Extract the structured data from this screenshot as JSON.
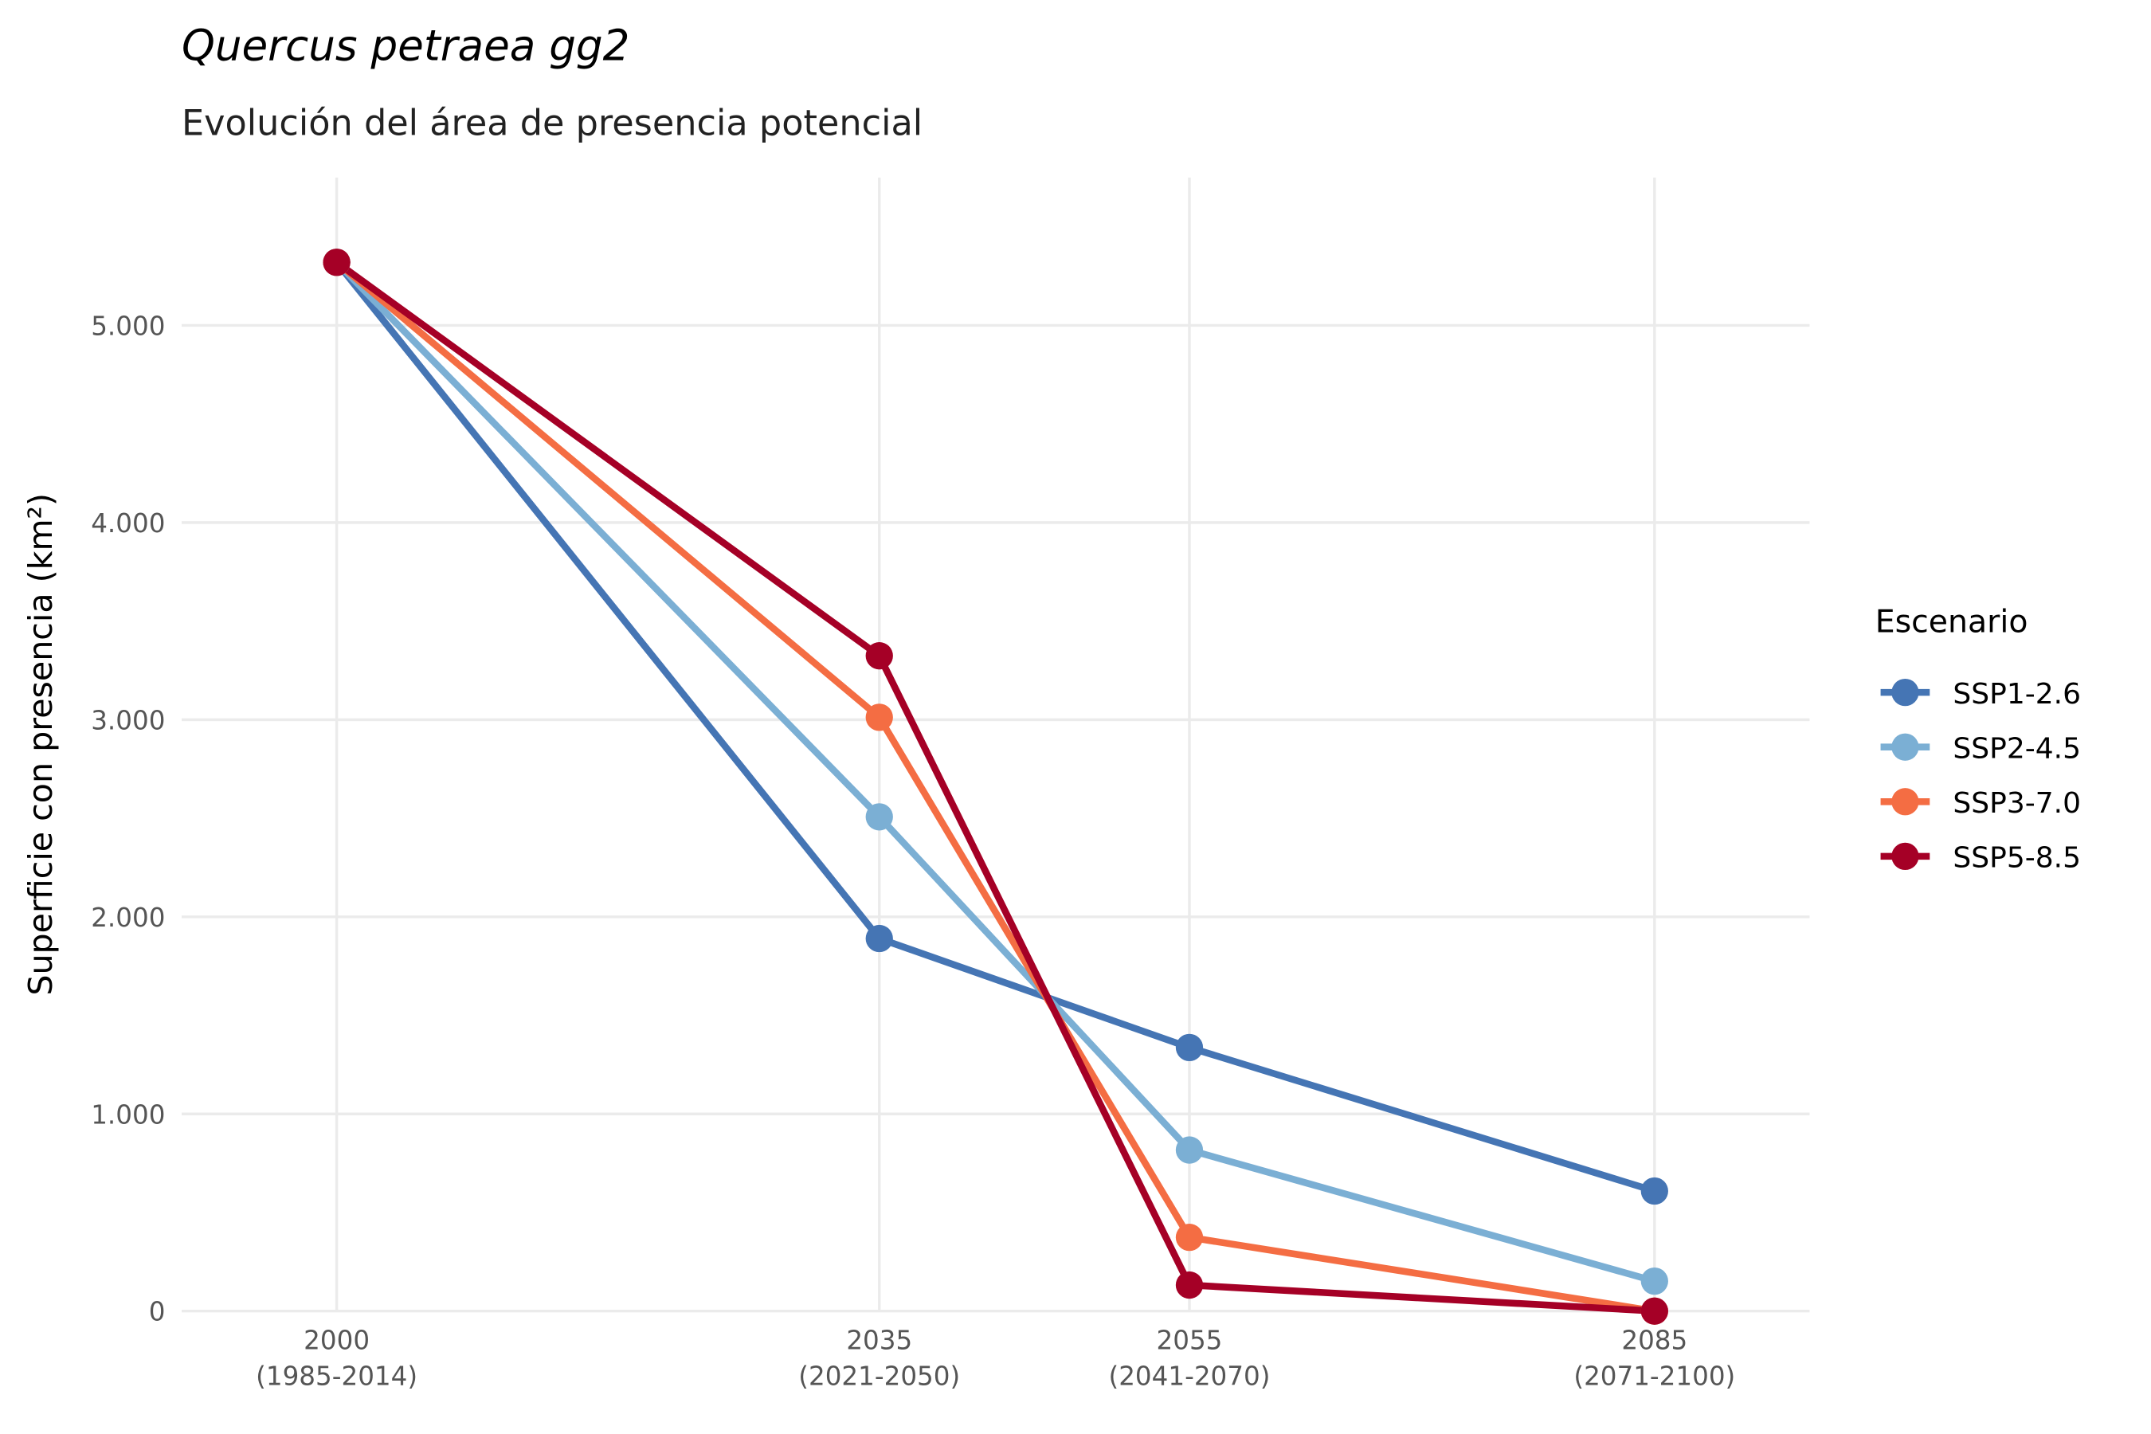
{
  "chart_data": {
    "type": "line",
    "title": "Quercus petraea gg2",
    "subtitle": "Evolución del área de presencia potencial",
    "y_label": "Superficie con presencia (km²)",
    "legend_title": "Escenario",
    "legend": "right",
    "grid": true,
    "x": [
      2000,
      2035,
      2055,
      2085
    ],
    "xlim": [
      1990,
      2095
    ],
    "xticks": [
      {
        "value": 2000,
        "label": "2000\n(1985-2014)"
      },
      {
        "value": 2035,
        "label": "2035\n(2021-2050)"
      },
      {
        "value": 2055,
        "label": "2055\n(2041-2070)"
      },
      {
        "value": 2085,
        "label": "2085\n(2071-2100)"
      }
    ],
    "ylim": [
      0,
      5750
    ],
    "yticks": [
      0,
      {
        "value": 1000,
        "label": "1.000"
      },
      {
        "value": 2000,
        "label": "2.000"
      },
      {
        "value": 3000,
        "label": "3.000"
      },
      {
        "value": 4000,
        "label": "4.000"
      },
      {
        "value": 5000,
        "label": "5.000"
      }
    ],
    "series": [
      {
        "name": "SSP1-2.6",
        "color": "#4575b4",
        "values": [
          5320,
          1890,
          1337,
          609
        ]
      },
      {
        "name": "SSP2-4.5",
        "color": "#7bafd4",
        "values": [
          5320,
          2507,
          817,
          152
        ]
      },
      {
        "name": "SSP3-7.0",
        "color": "#f46d43",
        "values": [
          5320,
          3012,
          374,
          0
        ]
      },
      {
        "name": "SSP5-8.5",
        "color": "#a50026",
        "values": [
          5320,
          3324,
          132,
          0
        ]
      }
    ]
  }
}
